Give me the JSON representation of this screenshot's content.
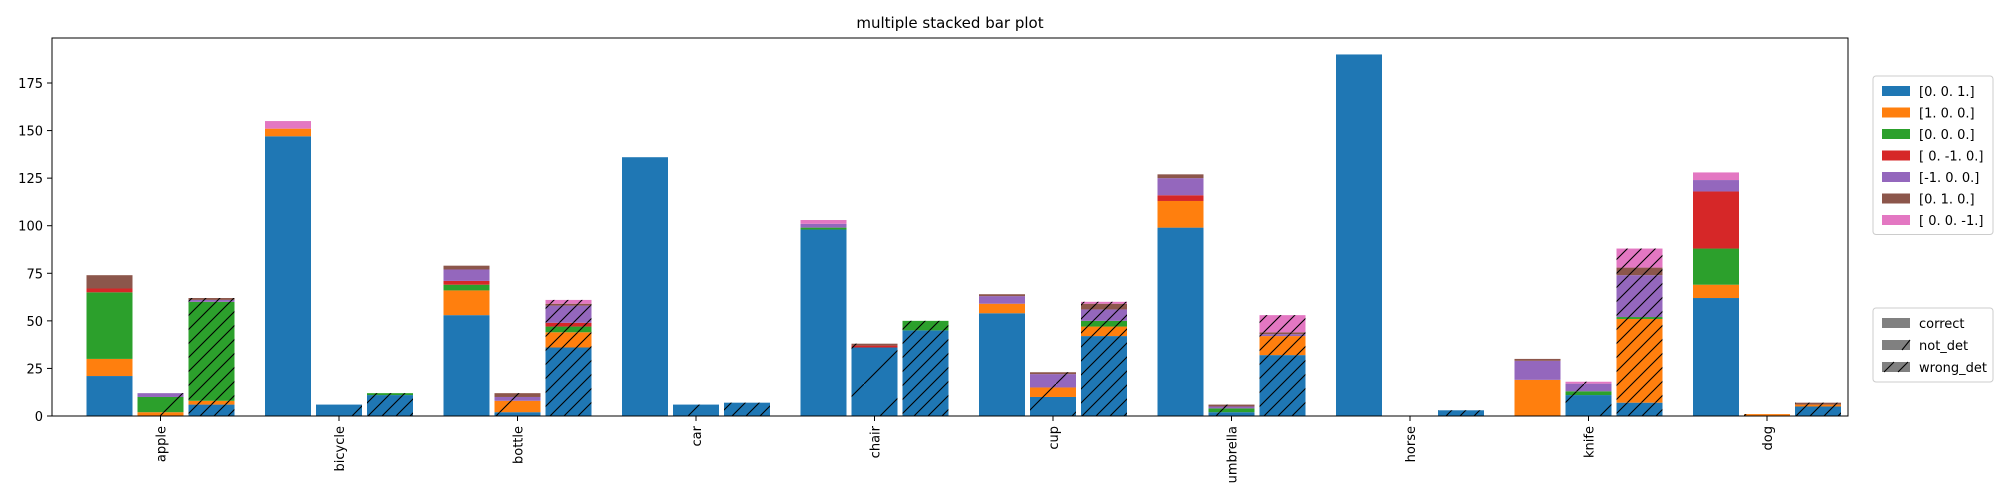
{
  "chart_data": {
    "type": "bar",
    "title": "multiple stacked bar plot",
    "xlabel": "",
    "ylabel": "",
    "ylim": [
      0,
      200
    ],
    "yticks": [
      0,
      25,
      50,
      75,
      100,
      125,
      150,
      175
    ],
    "grid": false,
    "categories": [
      "apple",
      "bicycle",
      "bottle",
      "car",
      "chair",
      "cup",
      "umbrella",
      "horse",
      "knife",
      "dog"
    ],
    "color_legend": {
      "placement": "upper-right-outside",
      "entries": [
        {
          "label": "[0. 0. 1.]",
          "color": "#1f77b4"
        },
        {
          "label": "[1. 0. 0.]",
          "color": "#ff7f0e"
        },
        {
          "label": "[0. 0. 0.]",
          "color": "#2ca02c"
        },
        {
          "label": "[ 0. -1.  0.]",
          "color": "#d62728"
        },
        {
          "label": "[-1.  0.  0.]",
          "color": "#9467bd"
        },
        {
          "label": "[0. 1. 0.]",
          "color": "#8c564b"
        },
        {
          "label": "[ 0.  0. -1.]",
          "color": "#e377c2"
        }
      ]
    },
    "hatch_legend": {
      "placement": "lower-right-outside",
      "entries": [
        {
          "label": "correct",
          "hatch": "none"
        },
        {
          "label": "not_det",
          "hatch": "single-stroke"
        },
        {
          "label": "wrong_det",
          "hatch": "dense-diagonal"
        }
      ]
    },
    "groups": [
      {
        "name": "correct",
        "hatch": "none",
        "stacks": [
          [
            21,
            9,
            35,
            2,
            0,
            7,
            0
          ],
          [
            147,
            4,
            0,
            0,
            0,
            0,
            4
          ],
          [
            53,
            13,
            3,
            2,
            6,
            2,
            0
          ],
          [
            136,
            0,
            0,
            0,
            0,
            0,
            0
          ],
          [
            98,
            0,
            1,
            0,
            2,
            0,
            2
          ],
          [
            54,
            5,
            0,
            0,
            4,
            1,
            0
          ],
          [
            99,
            14,
            0,
            3,
            9,
            2,
            0
          ],
          [
            190,
            0,
            0,
            0,
            0,
            0,
            0
          ],
          [
            0,
            19,
            0,
            0,
            10,
            1,
            0
          ],
          [
            62,
            7,
            19,
            30,
            6,
            0,
            4
          ]
        ]
      },
      {
        "name": "not_det",
        "hatch": "single-stroke",
        "stacks": [
          [
            0,
            2,
            8,
            0,
            2,
            0,
            0
          ],
          [
            6,
            0,
            0,
            0,
            0,
            0,
            0
          ],
          [
            2,
            6,
            0,
            0,
            2,
            2,
            0
          ],
          [
            6,
            0,
            0,
            0,
            0,
            0,
            0
          ],
          [
            36,
            0,
            0,
            1,
            0,
            1,
            0
          ],
          [
            10,
            5,
            0,
            0,
            7,
            1,
            0
          ],
          [
            2,
            0,
            2,
            0,
            1,
            1,
            0
          ],
          [
            0,
            0,
            0,
            0,
            0,
            0,
            0
          ],
          [
            11,
            0,
            2,
            0,
            4,
            0,
            1
          ],
          [
            0,
            1,
            0,
            0,
            0,
            0,
            0
          ]
        ]
      },
      {
        "name": "wrong_det",
        "hatch": "dense-diagonal",
        "stacks": [
          [
            6,
            2,
            52,
            0,
            1,
            1,
            0
          ],
          [
            11,
            0,
            1,
            0,
            0,
            0,
            0
          ],
          [
            36,
            8,
            3,
            2,
            9,
            1,
            2
          ],
          [
            7,
            0,
            0,
            0,
            0,
            0,
            0
          ],
          [
            45,
            0,
            5,
            0,
            0,
            0,
            0
          ],
          [
            42,
            5,
            3,
            0,
            6,
            3,
            1
          ],
          [
            32,
            10,
            0,
            0,
            1,
            1,
            9
          ],
          [
            3,
            0,
            0,
            0,
            0,
            0,
            0
          ],
          [
            7,
            44,
            1,
            0,
            22,
            4,
            10
          ],
          [
            5,
            1,
            0,
            0,
            0,
            1,
            0
          ]
        ]
      }
    ]
  }
}
